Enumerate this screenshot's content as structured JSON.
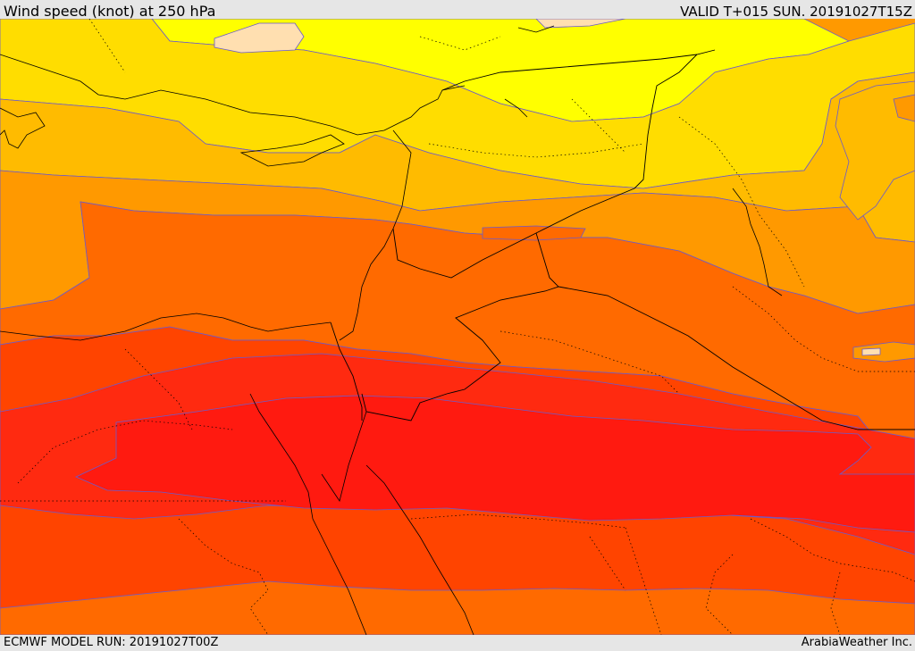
{
  "header": {
    "title": "Wind speed (knot) at 250 hPa",
    "valid_time": "VALID T+015 SUN. 20191027T15Z"
  },
  "footer": {
    "model_run": "ECMWF MODEL RUN: 20191027T00Z",
    "credit": "ArabiaWeather Inc."
  },
  "colors": {
    "band_1": "#ffdfb0",
    "band_2": "#ffff00",
    "band_3": "#ffdd00",
    "band_4": "#ffbb00",
    "band_5": "#ff9900",
    "band_6": "#ff6a00",
    "band_7": "#ff4400",
    "band_8": "#ff2a10",
    "band_9": "#ff1a10",
    "contour_line": "#6a5acd",
    "border_line": "#000000"
  }
}
